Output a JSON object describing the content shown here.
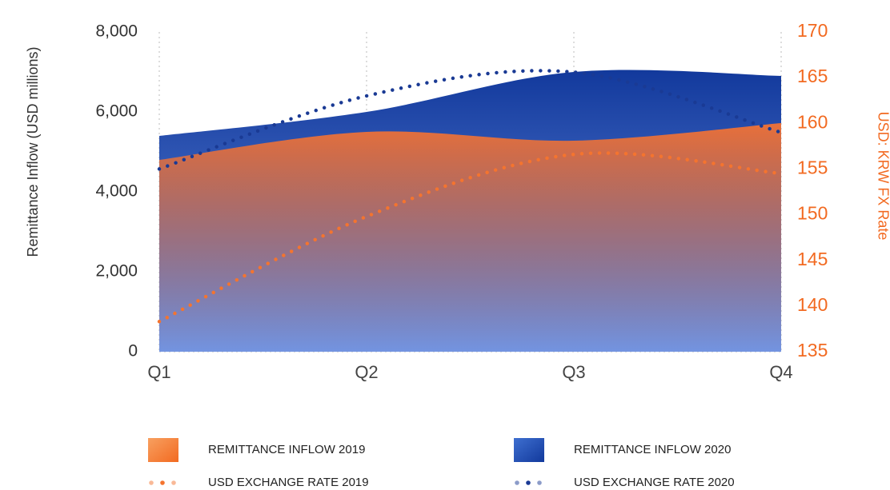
{
  "chart_data": {
    "type": "area",
    "y_label": "Remittance Inflow (USD millions)",
    "y2_label": "USD: KRW FX Rate",
    "categories": [
      "Q1",
      "Q2",
      "Q3",
      "Q4"
    ],
    "ylim": [
      0,
      8000
    ],
    "yticks": [
      0,
      {
        "value": 2000,
        "label": "2,000"
      },
      {
        "value": 4000,
        "label": "4,000"
      },
      {
        "value": 6000,
        "label": "6,000"
      },
      {
        "value": 8000,
        "label": "8,000"
      }
    ],
    "y2lim": [
      135,
      170
    ],
    "y2ticks": [
      135,
      140,
      145,
      150,
      155,
      160,
      165,
      170
    ],
    "grid": true,
    "series": [
      {
        "name": "REMITTANCE INFLOW 2020",
        "type": "area",
        "color": "#1f4fb5",
        "values": [
          5400,
          6000,
          7000,
          6900
        ]
      },
      {
        "name": "REMITTANCE INFLOW 2019",
        "type": "area",
        "color": "#e8703a",
        "values": [
          4800,
          5500,
          5280,
          5720
        ]
      },
      {
        "name": "USD EXCHANGE RATE 2019",
        "type": "line",
        "axis": "y2",
        "color": "#f4742f",
        "values": [
          138.3,
          149.8,
          156.6,
          154.5
        ]
      },
      {
        "name": "USD EXCHANGE RATE 2020",
        "type": "line",
        "axis": "y2",
        "color": "#1a3a94",
        "values": [
          155,
          163,
          165.6,
          159
        ]
      }
    ]
  }
}
